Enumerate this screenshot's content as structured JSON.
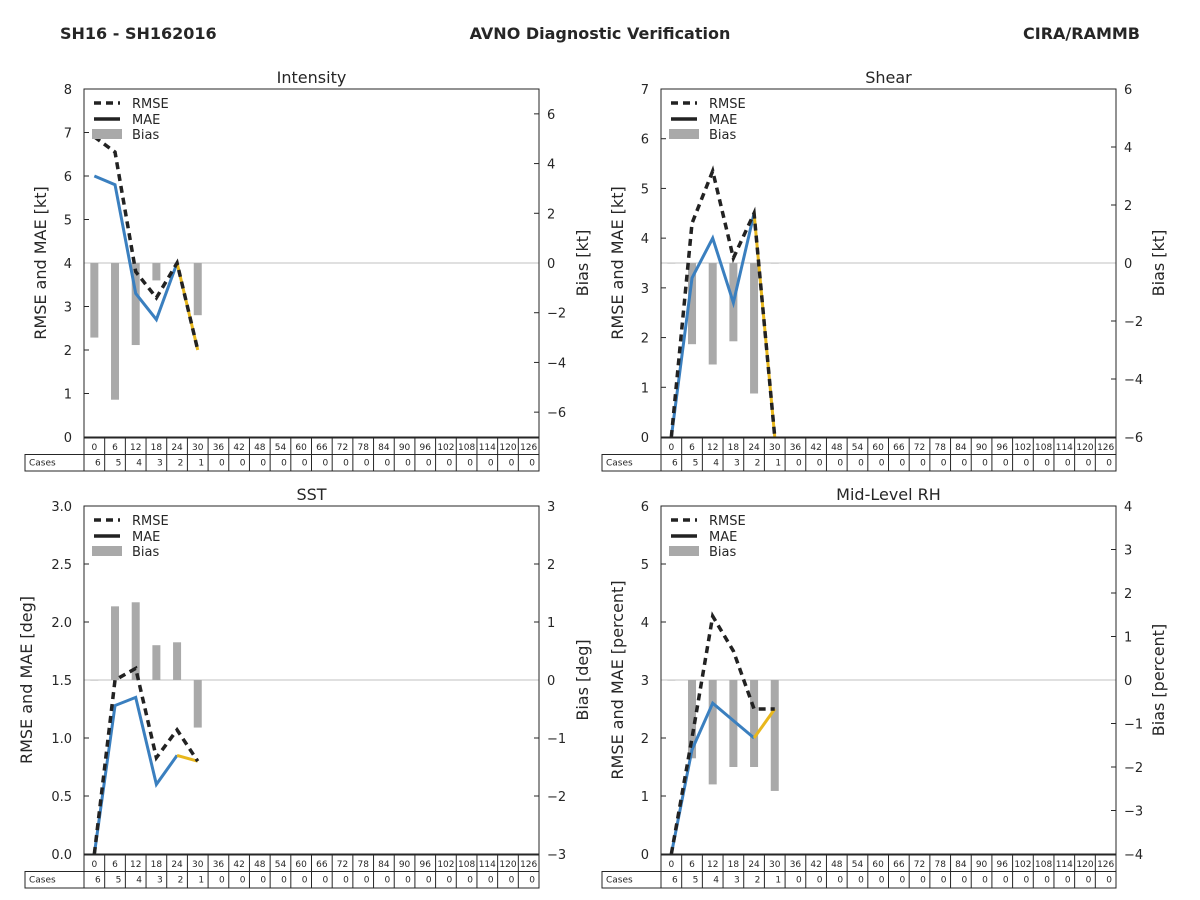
{
  "header": {
    "left": "SH16 - SH162016",
    "center": "AVNO Diagnostic Verification",
    "right": "CIRA/RAMMB"
  },
  "colors": {
    "rmse": "#222222",
    "mae_observed": "#3a7fbf",
    "mae_low_sample": "#e8b71c",
    "bias": "#a9a9a9",
    "zero_line": "#c0c0c0"
  },
  "legend": {
    "rmse": "RMSE",
    "mae": "MAE",
    "bias": "Bias"
  },
  "table_row_label": "Cases",
  "forecast_hours": [
    "0",
    "6",
    "12",
    "18",
    "24",
    "30",
    "36",
    "42",
    "48",
    "54",
    "60",
    "66",
    "72",
    "78",
    "84",
    "90",
    "96",
    "102",
    "108",
    "114",
    "120",
    "126"
  ],
  "cases": [
    "6",
    "5",
    "4",
    "3",
    "2",
    "1",
    "0",
    "0",
    "0",
    "0",
    "0",
    "0",
    "0",
    "0",
    "0",
    "0",
    "0",
    "0",
    "0",
    "0",
    "0",
    "0"
  ],
  "chart_data": [
    {
      "type": "line+bar",
      "title": "Intensity",
      "ylabel": "RMSE and MAE [kt]",
      "y2label": "Bias [kt]",
      "ylim": [
        0,
        8
      ],
      "yticks": [
        "0",
        "1",
        "2",
        "3",
        "4",
        "5",
        "6",
        "7",
        "8"
      ],
      "y2lim": [
        -7,
        7
      ],
      "y2ticks": [
        "−6",
        "−4",
        "−2",
        "0",
        "2",
        "4",
        "6"
      ],
      "y2tickvals": [
        -6,
        -4,
        -2,
        0,
        2,
        4,
        6
      ],
      "x": [
        0,
        6,
        12,
        18,
        24,
        30
      ],
      "series": [
        {
          "name": "RMSE",
          "values": [
            6.9,
            6.55,
            3.8,
            3.2,
            4.0,
            2.0
          ]
        },
        {
          "name": "MAE",
          "values": [
            6.0,
            5.8,
            3.3,
            2.7,
            4.0,
            2.0
          ]
        },
        {
          "name": "Bias",
          "values": [
            -3.0,
            -5.5,
            -3.3,
            -0.7,
            0.0,
            -2.1
          ]
        }
      ],
      "low_sample_from_index": 4
    },
    {
      "type": "line+bar",
      "title": "Shear",
      "ylabel": "RMSE and MAE [kt]",
      "y2label": "Bias [kt]",
      "ylim": [
        0,
        7
      ],
      "yticks": [
        "0",
        "1",
        "2",
        "3",
        "4",
        "5",
        "6",
        "7"
      ],
      "y2lim": [
        -6,
        6
      ],
      "y2ticks": [
        "−6",
        "−4",
        "−2",
        "0",
        "2",
        "4",
        "6"
      ],
      "y2tickvals": [
        -6,
        -4,
        -2,
        0,
        2,
        4,
        6
      ],
      "x": [
        0,
        6,
        12,
        18,
        24,
        30
      ],
      "series": [
        {
          "name": "RMSE",
          "values": [
            0.0,
            4.3,
            5.35,
            3.6,
            4.5,
            0.0
          ]
        },
        {
          "name": "MAE",
          "values": [
            0.0,
            3.2,
            4.0,
            2.7,
            4.5,
            0.0
          ]
        },
        {
          "name": "Bias",
          "values": [
            0.0,
            -2.8,
            -3.5,
            -2.7,
            -4.5,
            0.0
          ]
        }
      ],
      "low_sample_from_index": 4
    },
    {
      "type": "line+bar",
      "title": "SST",
      "ylabel": "RMSE and MAE [deg]",
      "y2label": "Bias [deg]",
      "ylim": [
        0,
        3
      ],
      "yticks": [
        "0.0",
        "0.5",
        "1.0",
        "1.5",
        "2.0",
        "2.5",
        "3.0"
      ],
      "y2lim": [
        -3,
        3
      ],
      "y2ticks": [
        "−3",
        "−2",
        "−1",
        "0",
        "1",
        "2",
        "3"
      ],
      "y2tickvals": [
        -3,
        -2,
        -1,
        0,
        1,
        2,
        3
      ],
      "x": [
        0,
        6,
        12,
        18,
        24,
        30
      ],
      "series": [
        {
          "name": "RMSE",
          "values": [
            0.0,
            1.5,
            1.6,
            0.83,
            1.07,
            0.8
          ]
        },
        {
          "name": "MAE",
          "values": [
            0.0,
            1.28,
            1.35,
            0.6,
            0.85,
            0.8
          ]
        },
        {
          "name": "Bias",
          "values": [
            0.0,
            1.27,
            1.34,
            0.6,
            0.65,
            -0.82
          ]
        }
      ],
      "low_sample_from_index": 4
    },
    {
      "type": "line+bar",
      "title": "Mid-Level RH",
      "ylabel": "RMSE and MAE [percent]",
      "y2label": "Bias [percent]",
      "ylim": [
        0,
        6
      ],
      "yticks": [
        "0",
        "1",
        "2",
        "3",
        "4",
        "5",
        "6"
      ],
      "y2lim": [
        -4,
        4
      ],
      "y2ticks": [
        "−4",
        "−3",
        "−2",
        "−1",
        "0",
        "1",
        "2",
        "3",
        "4"
      ],
      "y2tickvals": [
        -4,
        -3,
        -2,
        -1,
        0,
        1,
        2,
        3,
        4
      ],
      "x": [
        0,
        6,
        12,
        18,
        24,
        30
      ],
      "series": [
        {
          "name": "RMSE",
          "values": [
            0.0,
            2.0,
            4.1,
            3.5,
            2.5,
            2.5
          ]
        },
        {
          "name": "MAE",
          "values": [
            0.0,
            1.8,
            2.6,
            2.3,
            2.0,
            2.5
          ]
        },
        {
          "name": "Bias",
          "values": [
            0.0,
            -1.8,
            -2.4,
            -2.0,
            -2.0,
            -2.55
          ]
        }
      ],
      "low_sample_from_index": 4
    }
  ]
}
